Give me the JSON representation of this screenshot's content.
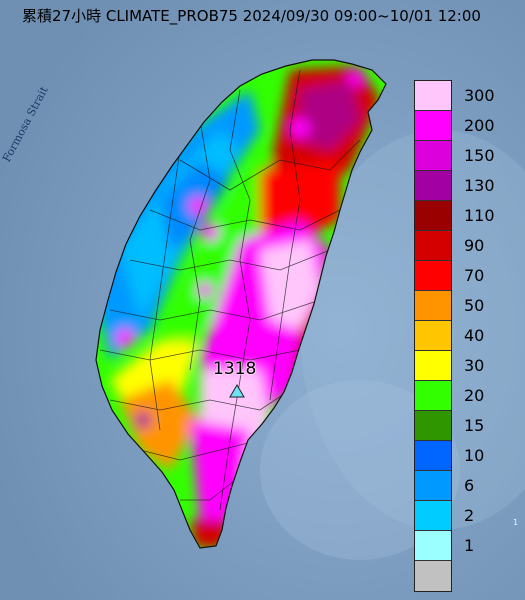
{
  "title": "累積27小時 CLIMATE_PROB75 2024/09/30 09:00~10/01 12:00",
  "strait_label": "Formosa Strait",
  "max_marker": {
    "value": "1318",
    "icon": "triangle-marker-icon",
    "color": "#6de2f5"
  },
  "legend": [
    {
      "label": "300",
      "color": "#ffc6fb"
    },
    {
      "label": "200",
      "color": "#ff00ff"
    },
    {
      "label": "150",
      "color": "#dc00dc"
    },
    {
      "label": "130",
      "color": "#a200a2"
    },
    {
      "label": "110",
      "color": "#9b0000"
    },
    {
      "label": "90",
      "color": "#d40000"
    },
    {
      "label": "70",
      "color": "#ff0000"
    },
    {
      "label": "50",
      "color": "#ff9400"
    },
    {
      "label": "40",
      "color": "#ffc600"
    },
    {
      "label": "30",
      "color": "#ffff00"
    },
    {
      "label": "20",
      "color": "#32ff00"
    },
    {
      "label": "15",
      "color": "#309600"
    },
    {
      "label": "10",
      "color": "#0066ff"
    },
    {
      "label": "6",
      "color": "#0099ff"
    },
    {
      "label": "2",
      "color": "#00ccff"
    },
    {
      "label": "1",
      "color": "#9bffff"
    },
    {
      "label": "",
      "color": "#c1c1c1"
    }
  ],
  "corner_text": "1"
}
